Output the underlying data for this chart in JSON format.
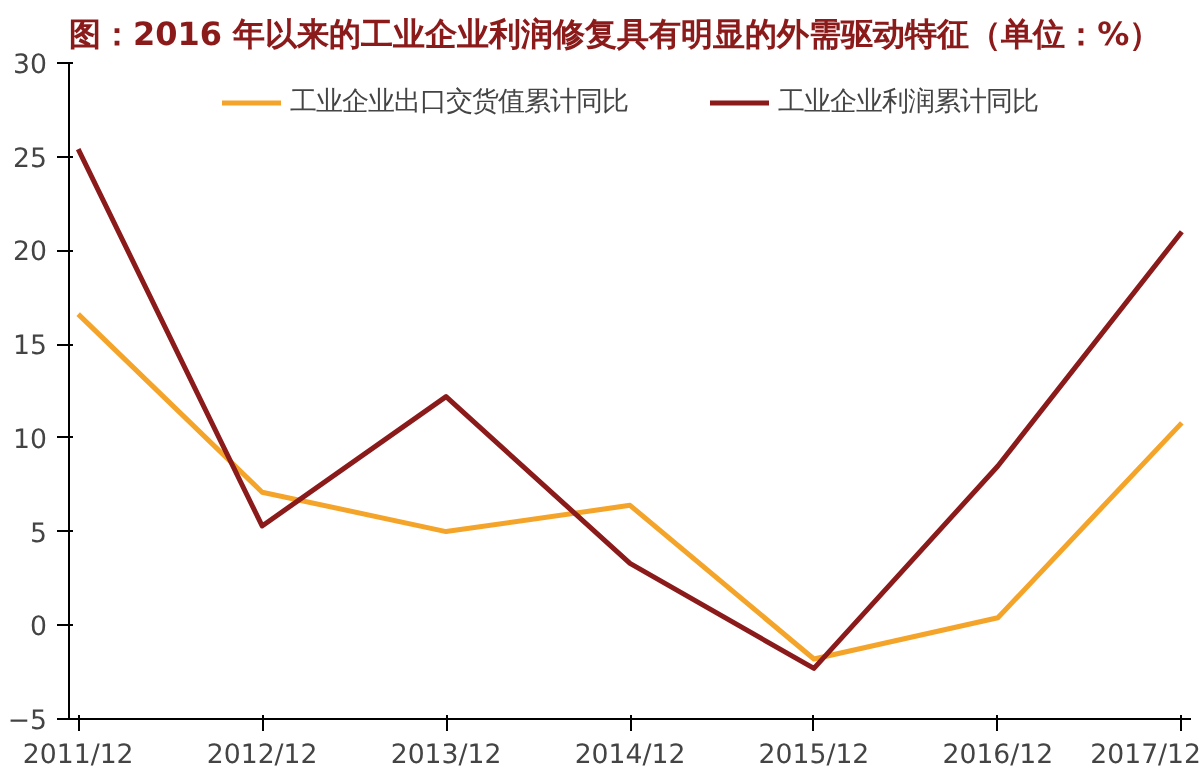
{
  "chart_data": {
    "type": "line",
    "title": "图：2016 年以来的工业企业利润修复具有明显的外需驱动特征（单位：%）",
    "categories": [
      "2011/12",
      "2012/12",
      "2013/12",
      "2014/12",
      "2015/12",
      "2016/12",
      "2017/12"
    ],
    "series": [
      {
        "name": "工业企业出口交货值累计同比",
        "color": "#f5a42a",
        "values": [
          16.6,
          7.1,
          5.0,
          6.4,
          -1.8,
          0.4,
          10.8
        ]
      },
      {
        "name": "工业企业利润累计同比",
        "color": "#8b1a1a",
        "values": [
          25.4,
          5.3,
          12.2,
          3.3,
          -2.3,
          8.5,
          21.0
        ]
      }
    ],
    "ylim": [
      -5,
      30
    ],
    "yticks": [
      -5,
      0,
      5,
      10,
      15,
      20,
      25,
      30
    ],
    "grid": false,
    "legend": "top",
    "marker": "none",
    "line_style": "solid"
  }
}
